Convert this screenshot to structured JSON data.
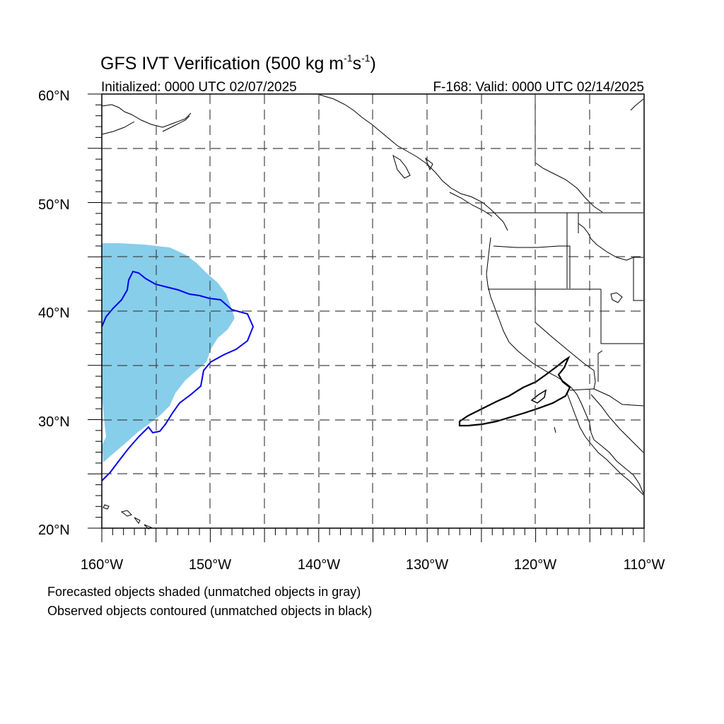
{
  "title": {
    "main": "GFS IVT Verification (500 kg m",
    "exp1": "-1",
    "mid": "s",
    "exp2": "-1",
    "close": ")"
  },
  "subtitle_left": "Initialized: 0000 UTC 02/07/2025",
  "subtitle_right": "F-168: Valid: 0000 UTC 02/14/2025",
  "lat_labels": [
    "60°N",
    "50°N",
    "40°N",
    "30°N",
    "20°N"
  ],
  "lon_labels": [
    "160°W",
    "150°W",
    "140°W",
    "130°W",
    "120°W",
    "110°W"
  ],
  "caption_1": "Forecasted objects shaded (unmatched objects in gray)",
  "caption_2": "Observed objects contoured (unmatched objects in black)",
  "colors": {
    "forecast_fill": "#87ceeb",
    "matched_contour": "#0000ee",
    "unmatched_contour": "#000000",
    "grid": "#444444"
  },
  "map_extent": {
    "lon_min": -160,
    "lon_max": -110,
    "lat_min": 20,
    "lat_max": 60
  }
}
